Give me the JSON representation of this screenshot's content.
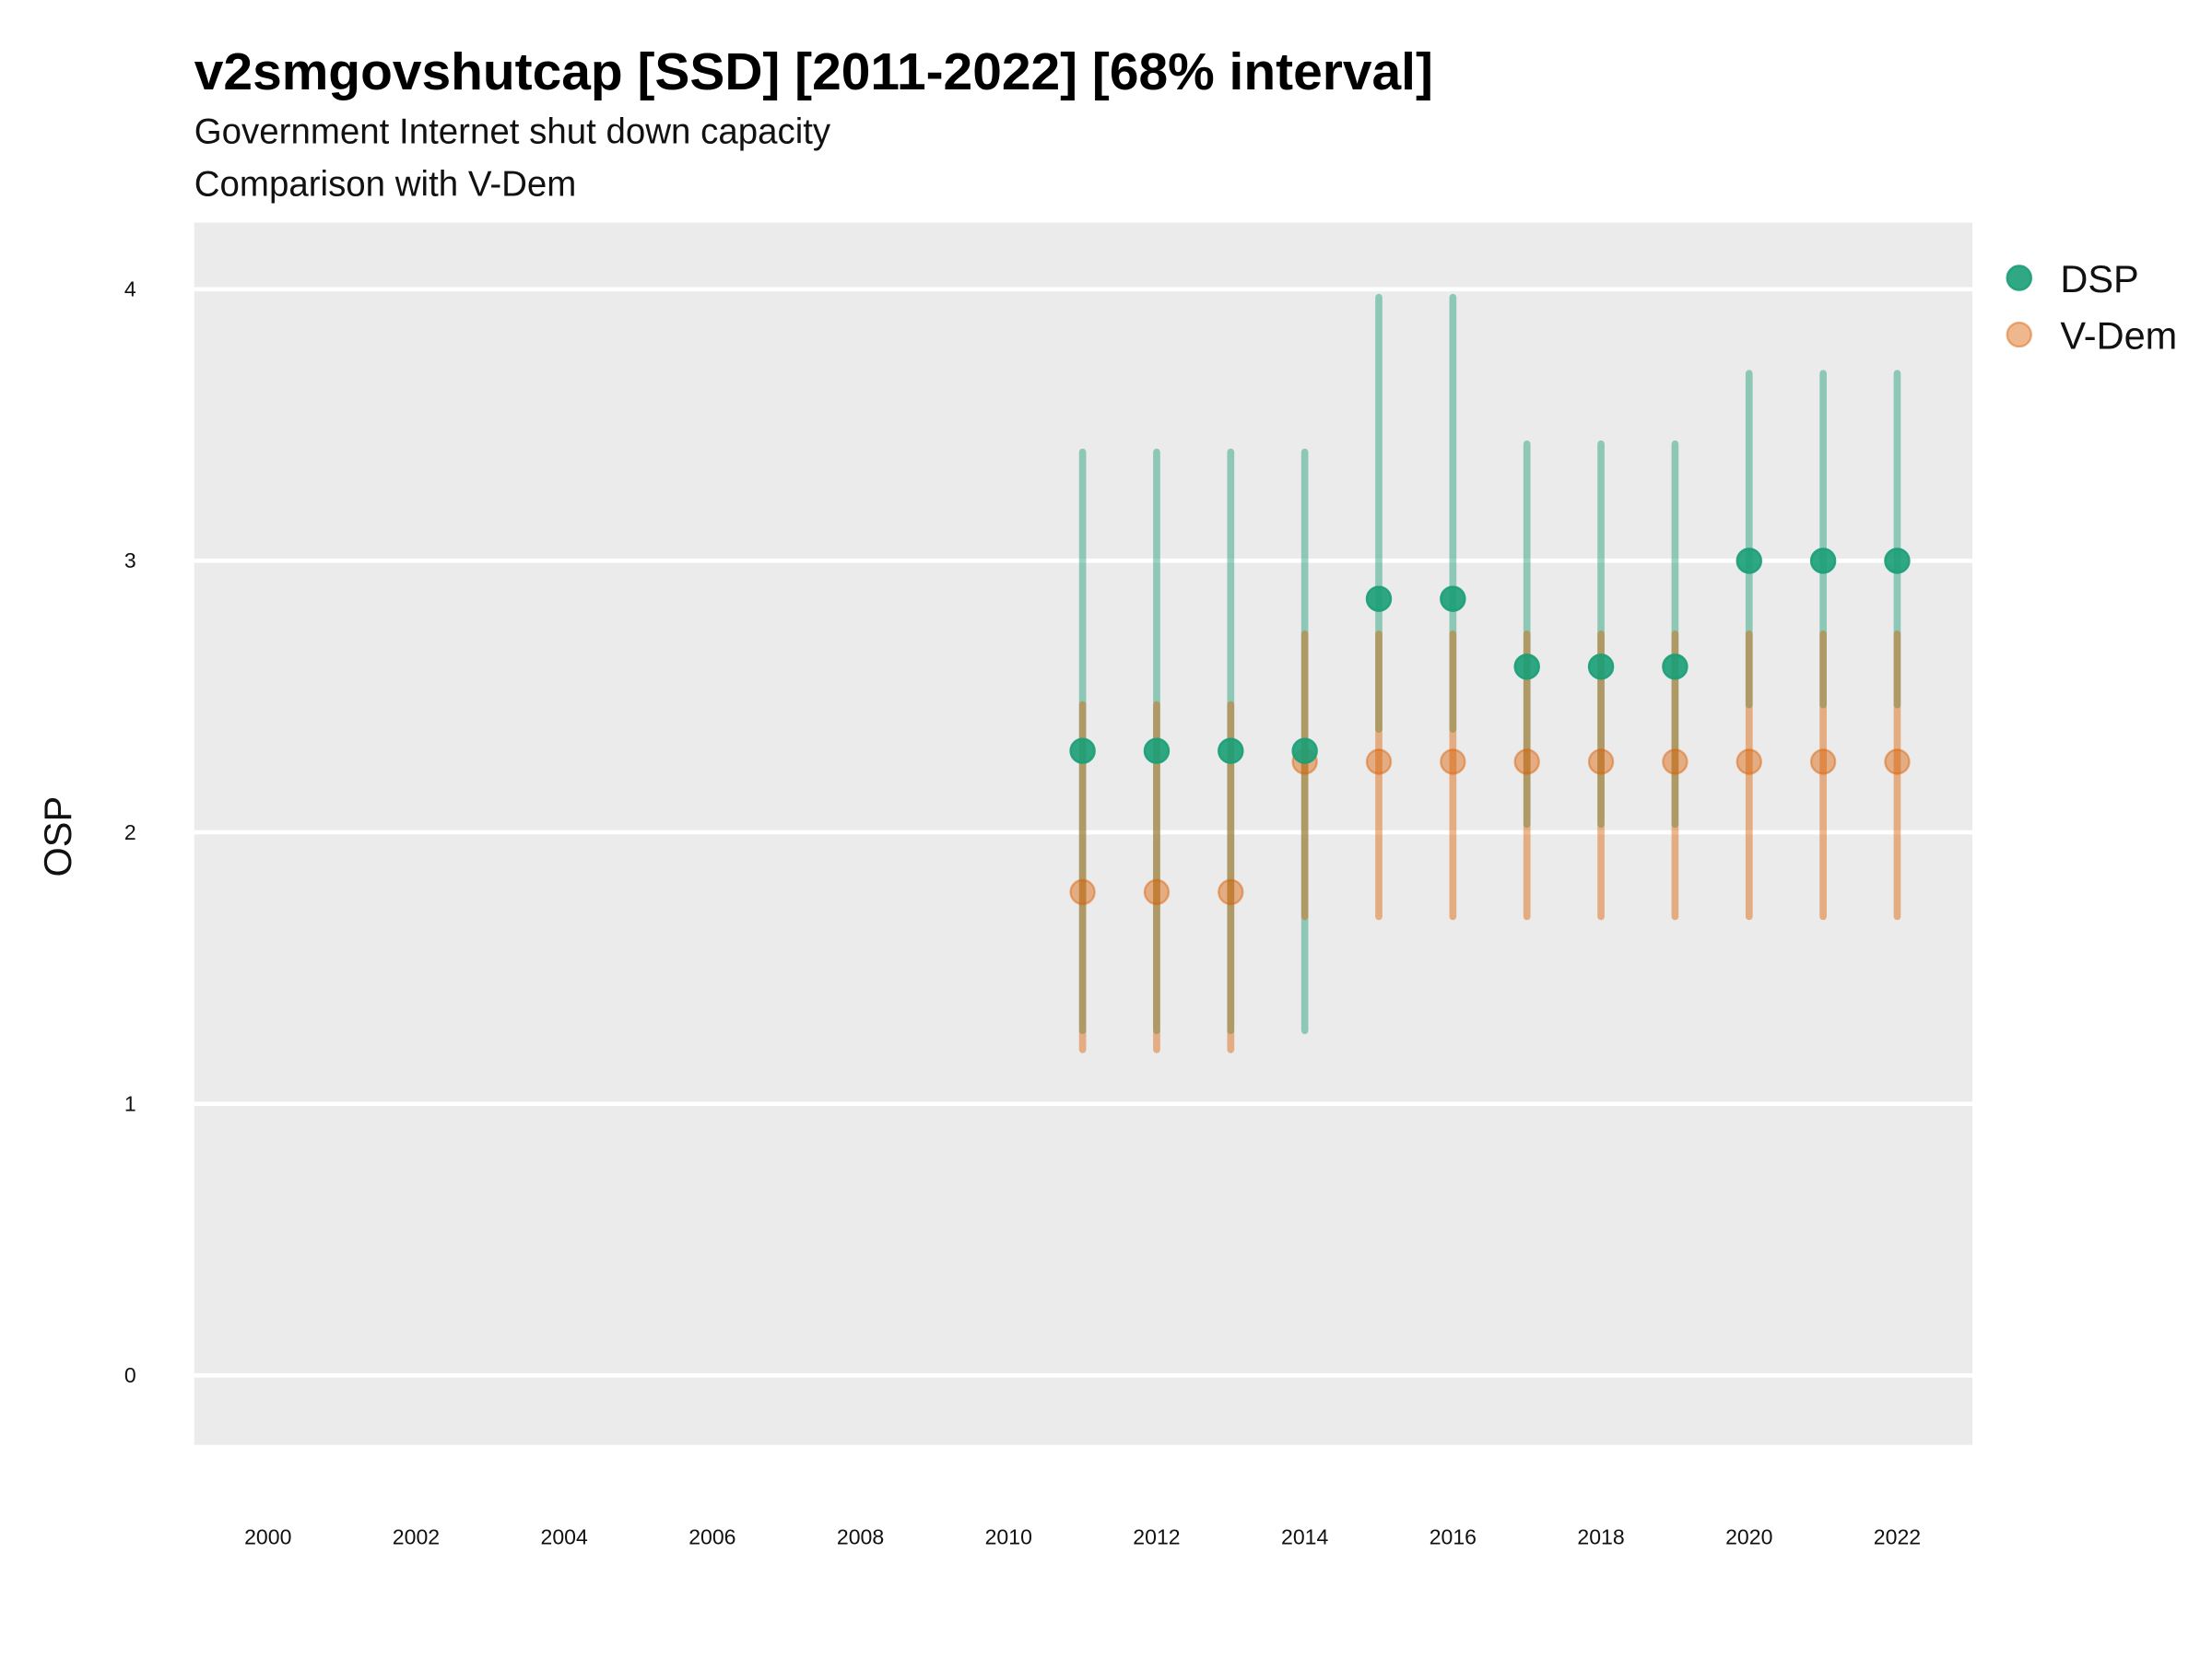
{
  "chart_data": {
    "type": "scatter",
    "title": "v2smgovshutcap [SSD] [2011-2022] [68% interval]",
    "subtitle": "Government Internet shut down capacity",
    "subtitle2": "Comparison with V-Dem",
    "xlabel": "",
    "ylabel": "OSP",
    "xlim": [
      1999,
      2023
    ],
    "ylim": [
      -0.25,
      4.25
    ],
    "x_ticks": [
      "2000",
      "2002",
      "2004",
      "2006",
      "2008",
      "2010",
      "2012",
      "2014",
      "2016",
      "2018",
      "2020",
      "2022"
    ],
    "y_ticks": [
      "0",
      "1",
      "2",
      "3",
      "4"
    ],
    "grid": true,
    "legend_position": "right",
    "series": [
      {
        "name": "DSP",
        "color": "#1b9e77",
        "x": [
          2011,
          2012,
          2013,
          2014,
          2015,
          2016,
          2017,
          2018,
          2019,
          2020,
          2021,
          2022
        ],
        "y": [
          2.3,
          2.3,
          2.3,
          2.3,
          2.86,
          2.86,
          2.61,
          2.61,
          2.61,
          3.0,
          3.0,
          3.0
        ],
        "lower": [
          1.27,
          1.27,
          1.27,
          1.27,
          2.38,
          2.38,
          2.03,
          2.03,
          2.03,
          2.47,
          2.47,
          2.47
        ],
        "upper": [
          3.4,
          3.4,
          3.4,
          3.4,
          3.97,
          3.97,
          3.43,
          3.43,
          3.43,
          3.69,
          3.69,
          3.69
        ]
      },
      {
        "name": "V-Dem",
        "color": "#d95f02",
        "x": [
          2011,
          2012,
          2013,
          2014,
          2015,
          2016,
          2017,
          2018,
          2019,
          2020,
          2021,
          2022
        ],
        "y": [
          1.78,
          1.78,
          1.78,
          2.26,
          2.26,
          2.26,
          2.26,
          2.26,
          2.26,
          2.26,
          2.26,
          2.26
        ],
        "lower": [
          1.2,
          1.2,
          1.2,
          1.69,
          1.69,
          1.69,
          1.69,
          1.69,
          1.69,
          1.69,
          1.69,
          1.69
        ],
        "upper": [
          2.47,
          2.47,
          2.47,
          2.73,
          2.73,
          2.73,
          2.73,
          2.73,
          2.73,
          2.73,
          2.73,
          2.73
        ]
      }
    ]
  }
}
